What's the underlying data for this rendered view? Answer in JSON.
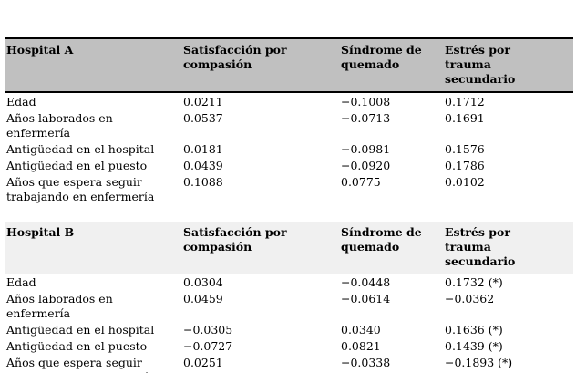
{
  "colors": {
    "header_a_bg": "#c0c0c0",
    "header_b_bg": "#f0f0f0",
    "rule": "#000000",
    "text": "#000000",
    "background": "#ffffff"
  },
  "table": {
    "sections": [
      {
        "title": "Hospital A",
        "columns": [
          "Satisfacción por compasión",
          "Síndrome de quemado",
          "Estrés por trauma secundario"
        ],
        "rows": [
          {
            "label": "Edad",
            "values": [
              "0.0211",
              "−0.1008",
              "0.1712"
            ]
          },
          {
            "label": "Años laborados en enfermería",
            "values": [
              "0.0537",
              "−0.0713",
              "0.1691"
            ]
          },
          {
            "label": "Antigüedad en el hospital",
            "values": [
              "0.0181",
              "−0.0981",
              "0.1576"
            ]
          },
          {
            "label": "Antigüedad en el puesto",
            "values": [
              "0.0439",
              "−0.0920",
              "0.1786"
            ]
          },
          {
            "label": "Años que espera seguir trabajando en enfermería",
            "values": [
              "0.1088",
              "0.0775",
              "0.0102"
            ]
          }
        ]
      },
      {
        "title": "Hospital B",
        "columns": [
          "Satisfacción por compasión",
          "Síndrome de quemado",
          "Estrés por trauma secundario"
        ],
        "rows": [
          {
            "label": "Edad",
            "values": [
              "0.0304",
              "−0.0448",
              "0.1732 (*)"
            ]
          },
          {
            "label": "Años laborados en enfermería",
            "values": [
              "0.0459",
              "−0.0614",
              "−0.0362"
            ]
          },
          {
            "label": "Antigüedad en el hospital",
            "values": [
              "−0.0305",
              "0.0340",
              "0.1636 (*)"
            ]
          },
          {
            "label": "Antigüedad en el puesto",
            "values": [
              "−0.0727",
              "0.0821",
              "0.1439 (*)"
            ]
          },
          {
            "label": "Años que espera seguir trabajando en enfermería",
            "values": [
              "0.0251",
              "−0.0338",
              "−0.1893 (*)"
            ]
          }
        ]
      }
    ]
  }
}
